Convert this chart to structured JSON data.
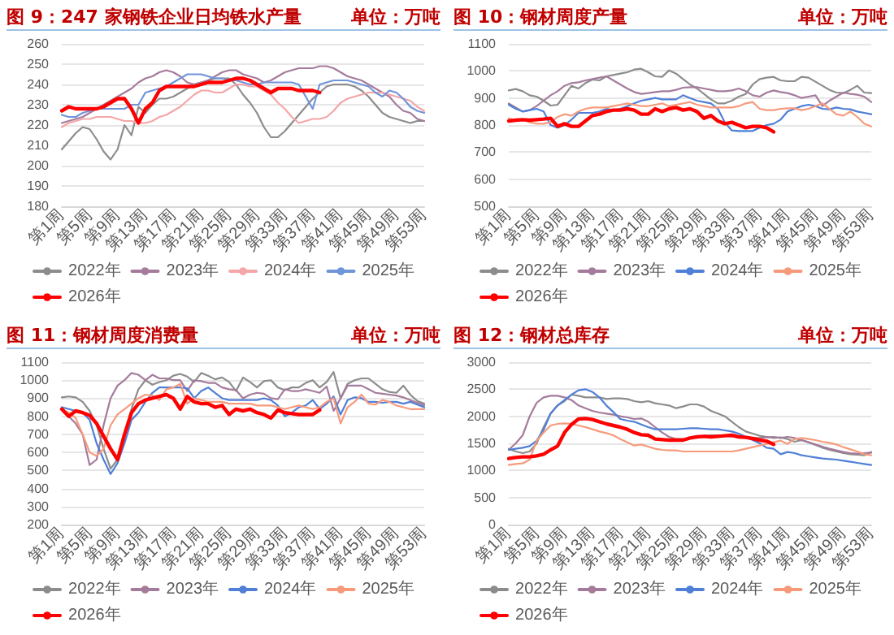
{
  "chart_data": [
    {
      "type": "line",
      "title": "图 9：247 家钢铁企业日均铁水产量",
      "subtitle": "单位：万吨",
      "categories": [
        "第1周",
        null,
        null,
        null,
        "第5周",
        null,
        null,
        null,
        "第9周",
        null,
        null,
        null,
        "第13周",
        null,
        null,
        null,
        "第17周",
        null,
        null,
        null,
        "第21周",
        null,
        null,
        null,
        "第25周",
        null,
        null,
        null,
        "第29周",
        null,
        null,
        null,
        "第33周",
        null,
        null,
        null,
        "第37周",
        null,
        null,
        null,
        "第41周",
        null,
        null,
        null,
        "第45周",
        null,
        null,
        null,
        "第49周",
        null,
        null,
        null,
        "第53周"
      ],
      "series": [
        {
          "name": "2022年",
          "color": "#8c8c8c",
          "values": [
            208,
            212,
            216,
            219,
            218,
            213,
            207,
            203,
            208,
            220,
            215,
            229,
            226,
            230,
            233,
            233,
            234,
            236,
            238,
            240,
            241,
            242,
            243,
            243,
            243,
            240,
            235,
            231,
            226,
            219,
            214,
            214,
            217,
            221,
            225,
            229,
            233,
            236,
            239,
            240,
            240,
            240,
            239,
            237,
            234,
            230,
            226,
            224,
            223,
            222,
            221,
            222,
            222
          ]
        },
        {
          "name": "2023年",
          "color": "#a57b9c",
          "values": [
            221,
            222,
            223,
            224,
            226,
            228,
            230,
            232,
            234,
            236,
            238,
            241,
            243,
            244,
            246,
            247,
            246,
            244,
            241,
            240,
            241,
            242,
            244,
            246,
            247,
            247,
            245,
            244,
            243,
            241,
            242,
            244,
            246,
            247,
            248,
            248,
            248,
            249,
            249,
            248,
            246,
            244,
            243,
            242,
            240,
            238,
            236,
            234,
            230,
            227,
            226,
            223,
            222
          ]
        },
        {
          "name": "2024年",
          "color": "#f4a6a8",
          "values": [
            219,
            221,
            222,
            223,
            223,
            224,
            224,
            224,
            223,
            222,
            222,
            221,
            221,
            222,
            224,
            225,
            227,
            229,
            232,
            235,
            237,
            237,
            236,
            236,
            238,
            240,
            240,
            239,
            239,
            237,
            235,
            231,
            228,
            224,
            221,
            222,
            223,
            223,
            224,
            227,
            231,
            233,
            234,
            235,
            236,
            236,
            236,
            235,
            234,
            233,
            232,
            229,
            227
          ]
        },
        {
          "name": "2025年",
          "color": "#6f95d9",
          "values": [
            225,
            224,
            224,
            226,
            227,
            228,
            228,
            228,
            228,
            228,
            230,
            230,
            236,
            237,
            238,
            239,
            241,
            243,
            245,
            245,
            245,
            244,
            243,
            243,
            242,
            242,
            241,
            240,
            240,
            241,
            241,
            241,
            241,
            241,
            240,
            234,
            228,
            240,
            241,
            242,
            242,
            242,
            241,
            240,
            239,
            236,
            234,
            237,
            236,
            233,
            229,
            227,
            226
          ]
        },
        {
          "name": "2026年",
          "color": "#ff0000",
          "values": [
            227,
            229,
            228,
            228,
            228,
            228,
            229,
            231,
            233,
            233,
            228,
            221,
            228,
            231,
            237,
            239,
            239,
            239,
            239,
            239,
            240,
            241,
            241,
            241,
            242,
            243,
            243,
            242,
            240,
            238,
            236,
            238,
            238,
            238,
            237,
            237,
            237,
            236,
            null,
            null,
            null,
            null,
            null,
            null,
            null,
            null,
            null,
            null,
            null,
            null,
            null,
            null,
            null
          ]
        }
      ],
      "ylim": [
        180,
        260
      ],
      "yticks": [
        180,
        190,
        200,
        210,
        220,
        230,
        240,
        250,
        260
      ],
      "grid": "y",
      "legend": "bottom",
      "marker": "none",
      "line_style": "solid"
    },
    {
      "type": "line",
      "title": "图 10：钢材周度产量",
      "subtitle": "单位：万吨",
      "categories": [
        "第1周",
        null,
        null,
        null,
        "第5周",
        null,
        null,
        null,
        "第9周",
        null,
        null,
        null,
        "第13周",
        null,
        null,
        null,
        "第17周",
        null,
        null,
        null,
        "第21周",
        null,
        null,
        null,
        "第25周",
        null,
        null,
        null,
        "第29周",
        null,
        null,
        null,
        "第33周",
        null,
        null,
        null,
        "第37周",
        null,
        null,
        null,
        "第41周",
        null,
        null,
        null,
        "第45周",
        null,
        null,
        null,
        "第49周",
        null,
        null,
        null,
        "第53周"
      ],
      "series": [
        {
          "name": "2022年",
          "color": "#8c8c8c",
          "values": [
            928,
            933,
            925,
            910,
            905,
            890,
            872,
            875,
            910,
            945,
            935,
            955,
            968,
            965,
            980,
            985,
            990,
            995,
            1005,
            1008,
            995,
            980,
            978,
            1002,
            990,
            970,
            950,
            935,
            915,
            895,
            880,
            880,
            890,
            905,
            915,
            950,
            970,
            975,
            978,
            965,
            962,
            962,
            978,
            975,
            960,
            945,
            930,
            920,
            918,
            930,
            945,
            920,
            918
          ]
        },
        {
          "name": "2023年",
          "color": "#a57b9c",
          "values": [
            880,
            865,
            850,
            855,
            870,
            890,
            910,
            925,
            945,
            955,
            958,
            965,
            970,
            975,
            980,
            965,
            950,
            935,
            922,
            915,
            918,
            922,
            925,
            925,
            930,
            938,
            940,
            940,
            935,
            930,
            925,
            925,
            928,
            935,
            925,
            910,
            905,
            920,
            928,
            922,
            918,
            910,
            900,
            905,
            910,
            870,
            890,
            905,
            920,
            915,
            912,
            905,
            885
          ]
        },
        {
          "name": "2024年",
          "color": "#4f7fd6",
          "values": [
            875,
            860,
            850,
            855,
            860,
            850,
            800,
            790,
            800,
            820,
            845,
            845,
            845,
            850,
            860,
            855,
            860,
            870,
            880,
            890,
            895,
            900,
            895,
            895,
            895,
            910,
            900,
            890,
            885,
            880,
            860,
            810,
            780,
            778,
            778,
            778,
            790,
            800,
            805,
            820,
            850,
            860,
            870,
            875,
            870,
            860,
            858,
            865,
            860,
            858,
            850,
            845,
            840
          ]
        },
        {
          "name": "2025年",
          "color": "#f79a7c",
          "values": [
            825,
            815,
            820,
            810,
            805,
            805,
            810,
            830,
            840,
            835,
            850,
            860,
            865,
            865,
            865,
            870,
            875,
            880,
            875,
            870,
            870,
            875,
            880,
            870,
            875,
            880,
            885,
            875,
            870,
            865,
            865,
            865,
            865,
            870,
            880,
            885,
            860,
            855,
            855,
            860,
            862,
            862,
            855,
            860,
            870,
            880,
            860,
            840,
            835,
            850,
            830,
            805,
            795
          ]
        },
        {
          "name": "2026年",
          "color": "#ff0000",
          "values": [
            815,
            818,
            820,
            818,
            820,
            822,
            825,
            795,
            805,
            795,
            795,
            815,
            835,
            840,
            850,
            855,
            855,
            860,
            855,
            840,
            840,
            860,
            850,
            860,
            865,
            855,
            860,
            850,
            825,
            835,
            815,
            805,
            810,
            800,
            790,
            795,
            795,
            790,
            775,
            null,
            null,
            null,
            null,
            null,
            null,
            null,
            null,
            null,
            null,
            null,
            null,
            null,
            null
          ]
        }
      ],
      "ylim": [
        500,
        1100
      ],
      "yticks": [
        500,
        600,
        700,
        800,
        900,
        1000,
        1100
      ],
      "grid": "y",
      "legend": "bottom",
      "marker": "none",
      "line_style": "solid"
    },
    {
      "type": "line",
      "title": "图 11：钢材周度消费量",
      "subtitle": "单位：万吨",
      "categories": [
        "第1周",
        null,
        null,
        null,
        "第5周",
        null,
        null,
        null,
        "第9周",
        null,
        null,
        null,
        "第13周",
        null,
        null,
        null,
        "第17周",
        null,
        null,
        null,
        "第21周",
        null,
        null,
        null,
        "第25周",
        null,
        null,
        null,
        "第29周",
        null,
        null,
        null,
        "第33周",
        null,
        null,
        null,
        "第37周",
        null,
        null,
        null,
        "第41周",
        null,
        null,
        null,
        "第45周",
        null,
        null,
        null,
        "第49周",
        null,
        null,
        null,
        "第53周"
      ],
      "series": [
        {
          "name": "2022年",
          "color": "#8c8c8c",
          "values": [
            905,
            910,
            905,
            880,
            830,
            750,
            620,
            510,
            560,
            700,
            840,
            950,
            1000,
            975,
            990,
            1000,
            1025,
            1035,
            1020,
            990,
            1040,
            1025,
            1005,
            1015,
            990,
            940,
            1015,
            990,
            960,
            995,
            1000,
            960,
            945,
            960,
            960,
            985,
            1000,
            960,
            990,
            1045,
            900,
            980,
            1000,
            1010,
            1010,
            980,
            950,
            935,
            930,
            970,
            920,
            885,
            870
          ]
        },
        {
          "name": "2023年",
          "color": "#a57b9c",
          "values": [
            850,
            800,
            760,
            700,
            530,
            560,
            750,
            900,
            970,
            1000,
            1040,
            1030,
            1000,
            1030,
            1010,
            1010,
            1000,
            1000,
            940,
            1000,
            995,
            985,
            985,
            960,
            950,
            945,
            900,
            920,
            930,
            925,
            900,
            895,
            950,
            940,
            940,
            950,
            940,
            930,
            965,
            830,
            900,
            970,
            970,
            970,
            950,
            930,
            925,
            920,
            915,
            905,
            890,
            875,
            860
          ]
        },
        {
          "name": "2024年",
          "color": "#4f7fd6",
          "values": [
            850,
            840,
            830,
            820,
            780,
            650,
            560,
            480,
            540,
            650,
            780,
            820,
            880,
            930,
            960,
            960,
            960,
            960,
            955,
            900,
            940,
            960,
            930,
            900,
            890,
            890,
            890,
            890,
            890,
            900,
            890,
            860,
            800,
            820,
            850,
            860,
            890,
            840,
            870,
            910,
            810,
            890,
            905,
            900,
            880,
            880,
            875,
            880,
            880,
            870,
            880,
            865,
            850
          ]
        },
        {
          "name": "2025年",
          "color": "#f79a7c",
          "values": [
            840,
            820,
            790,
            700,
            600,
            580,
            620,
            750,
            810,
            840,
            870,
            900,
            920,
            915,
            890,
            950,
            960,
            980,
            870,
            900,
            890,
            880,
            880,
            880,
            870,
            870,
            870,
            870,
            860,
            860,
            860,
            850,
            840,
            850,
            860,
            850,
            840,
            850,
            880,
            900,
            760,
            850,
            880,
            920,
            870,
            865,
            890,
            880,
            860,
            850,
            840,
            840,
            840
          ]
        },
        {
          "name": "2026年",
          "color": "#ff0000",
          "values": [
            840,
            800,
            830,
            820,
            805,
            760,
            690,
            620,
            560,
            700,
            820,
            870,
            890,
            900,
            910,
            920,
            900,
            840,
            910,
            880,
            870,
            870,
            850,
            860,
            810,
            840,
            830,
            840,
            820,
            810,
            790,
            835,
            820,
            815,
            810,
            810,
            810,
            835,
            null,
            null,
            null,
            null,
            null,
            null,
            null,
            null,
            null,
            null,
            null,
            null,
            null,
            null,
            null
          ]
        }
      ],
      "ylim": [
        200,
        1100
      ],
      "yticks": [
        200,
        300,
        400,
        500,
        600,
        700,
        800,
        900,
        1000,
        1100
      ],
      "grid": "y",
      "legend": "bottom",
      "marker": "none",
      "line_style": "solid"
    },
    {
      "type": "line",
      "title": "图 12：钢材总库存",
      "subtitle": "单位：万吨",
      "categories": [
        "第1周",
        null,
        null,
        null,
        "第5周",
        null,
        null,
        null,
        "第9周",
        null,
        null,
        null,
        "第13周",
        null,
        null,
        null,
        "第17周",
        null,
        null,
        null,
        "第21周",
        null,
        null,
        null,
        "第25周",
        null,
        null,
        null,
        "第29周",
        null,
        null,
        null,
        "第33周",
        null,
        null,
        null,
        "第37周",
        null,
        null,
        null,
        "第41周",
        null,
        null,
        null,
        "第45周",
        null,
        null,
        null,
        "第49周",
        null,
        null,
        null,
        "第53周"
      ],
      "series": [
        {
          "name": "2022年",
          "color": "#8c8c8c",
          "values": [
            1400,
            1350,
            1320,
            1350,
            1500,
            1800,
            2050,
            2200,
            2280,
            2400,
            2380,
            2350,
            2350,
            2350,
            2320,
            2330,
            2330,
            2320,
            2280,
            2260,
            2280,
            2240,
            2220,
            2200,
            2150,
            2180,
            2220,
            2220,
            2180,
            2100,
            2050,
            2000,
            1900,
            1800,
            1720,
            1680,
            1640,
            1620,
            1600,
            1610,
            1580,
            1530,
            1560,
            1520,
            1470,
            1420,
            1380,
            1350,
            1320,
            1300,
            1290,
            1280,
            1340
          ]
        },
        {
          "name": "2023年",
          "color": "#a57b9c",
          "values": [
            1380,
            1500,
            1650,
            2000,
            2250,
            2350,
            2380,
            2380,
            2350,
            2300,
            2200,
            2150,
            2100,
            2070,
            2050,
            2030,
            2000,
            1980,
            1950,
            1960,
            1900,
            1800,
            1700,
            1620,
            1580,
            1580,
            null,
            null,
            1640,
            1650,
            1650,
            1640,
            1630,
            1620,
            1610,
            1600,
            1600,
            1610,
            1620,
            1600,
            1620,
            1600,
            1560,
            1520,
            1480,
            1440,
            1400,
            1370,
            1340,
            1320,
            1310,
            1320,
            1330
          ]
        },
        {
          "name": "2024年",
          "color": "#4f7fd6",
          "values": [
            1380,
            1400,
            1420,
            1450,
            1550,
            1750,
            2050,
            2200,
            2300,
            2400,
            2480,
            2500,
            2450,
            2350,
            2200,
            2080,
            1950,
            1920,
            1900,
            1850,
            1800,
            1760,
            1760,
            1760,
            1760,
            1770,
            1780,
            1780,
            1770,
            1760,
            1760,
            1740,
            1720,
            1680,
            1620,
            1560,
            1500,
            1420,
            1400,
            1300,
            1340,
            1320,
            1280,
            1260,
            1240,
            1220,
            1210,
            1200,
            1180,
            1160,
            1140,
            1120,
            1100
          ]
        },
        {
          "name": "2025年",
          "color": "#f79a7c",
          "values": [
            1100,
            1120,
            1130,
            1200,
            1550,
            1700,
            1830,
            1860,
            1870,
            1860,
            1830,
            1800,
            1760,
            1720,
            1690,
            1650,
            1580,
            1520,
            1460,
            1480,
            1440,
            1400,
            1380,
            1370,
            1370,
            1350,
            1350,
            1350,
            1350,
            1350,
            1350,
            1350,
            1350,
            1370,
            1400,
            1430,
            1460,
            1490,
            1520,
            1550,
            1490,
            1580,
            1600,
            1580,
            1560,
            1530,
            1510,
            1480,
            1430,
            1390,
            1350,
            1300,
            1280
          ]
        },
        {
          "name": "2026年",
          "color": "#ff0000",
          "values": [
            1220,
            1240,
            1250,
            1250,
            1270,
            1300,
            1380,
            1450,
            1700,
            1850,
            1950,
            1960,
            1940,
            1900,
            1860,
            1830,
            1800,
            1760,
            1700,
            1660,
            1650,
            1580,
            1570,
            1560,
            1560,
            1560,
            1600,
            1620,
            1630,
            1620,
            1630,
            1640,
            1650,
            1620,
            1610,
            1590,
            1560,
            1540,
            1480,
            null,
            null,
            null,
            null,
            null,
            null,
            null,
            null,
            null,
            null,
            null,
            null,
            null,
            null
          ]
        }
      ],
      "ylim": [
        0,
        3000
      ],
      "yticks": [
        0,
        500,
        1000,
        1500,
        2000,
        2500,
        3000
      ],
      "grid": "y",
      "legend": "bottom",
      "marker": "none",
      "line_style": "solid"
    }
  ]
}
